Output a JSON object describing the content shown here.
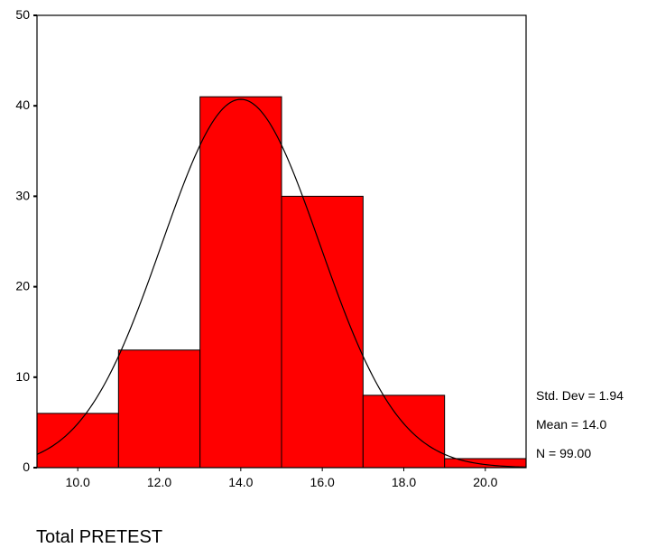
{
  "chart_data": {
    "type": "bar",
    "subtype": "histogram",
    "title": "",
    "xlabel": "Total PRETEST",
    "ylabel": "",
    "bins": [
      {
        "from": 9.0,
        "to": 11.0,
        "count": 6
      },
      {
        "from": 11.0,
        "to": 13.0,
        "count": 13
      },
      {
        "from": 13.0,
        "to": 15.0,
        "count": 41
      },
      {
        "from": 15.0,
        "to": 17.0,
        "count": 30
      },
      {
        "from": 17.0,
        "to": 19.0,
        "count": 8
      },
      {
        "from": 19.0,
        "to": 21.0,
        "count": 1
      }
    ],
    "xlim": [
      9.0,
      21.0
    ],
    "ylim": [
      0,
      50
    ],
    "xticks": [
      "10.0",
      "12.0",
      "14.0",
      "16.0",
      "18.0",
      "20.0"
    ],
    "yticks": [
      "0",
      "10",
      "20",
      "30",
      "40",
      "50"
    ],
    "normal_curve": {
      "mean": 14.0,
      "std": 1.94,
      "n": 99,
      "bin_width": 2
    },
    "bar_color": "#ff0000",
    "grid": false,
    "stats": {
      "std_dev": "Std. Dev = 1.94",
      "mean": "Mean = 14.0",
      "n": "N = 99.00"
    }
  }
}
